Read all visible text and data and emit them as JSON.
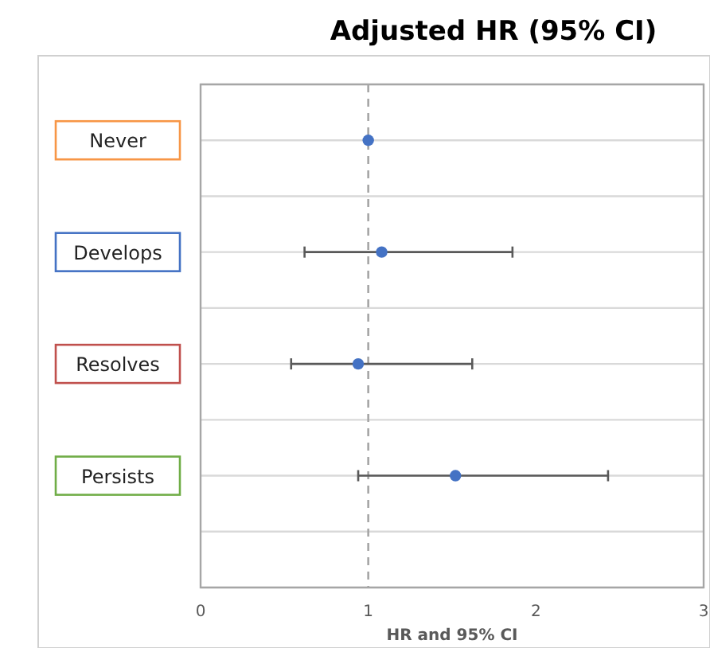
{
  "chart_data": {
    "type": "scatter",
    "title": "Adjusted HR (95% CI)",
    "xlabel": "HR and 95% CI",
    "orientation": "horizontal",
    "categories": [
      "Never",
      "Develops",
      "Resolves",
      "Persists"
    ],
    "series": [
      {
        "color": "#4472c4",
        "values": [
          1.0,
          1.08,
          0.94,
          1.52
        ],
        "errors": [
          null,
          [
            0.62,
            1.86
          ],
          [
            0.54,
            1.62
          ],
          [
            0.94,
            2.43
          ]
        ]
      }
    ],
    "xlim": [
      0,
      3
    ],
    "xticks": [
      0,
      1,
      2,
      3
    ],
    "grid": "y",
    "marker": "circle",
    "ref_lines": [
      {
        "axis": "x",
        "value": 1,
        "color": "#a6a6a6",
        "line_style": "dashed"
      }
    ]
  }
}
